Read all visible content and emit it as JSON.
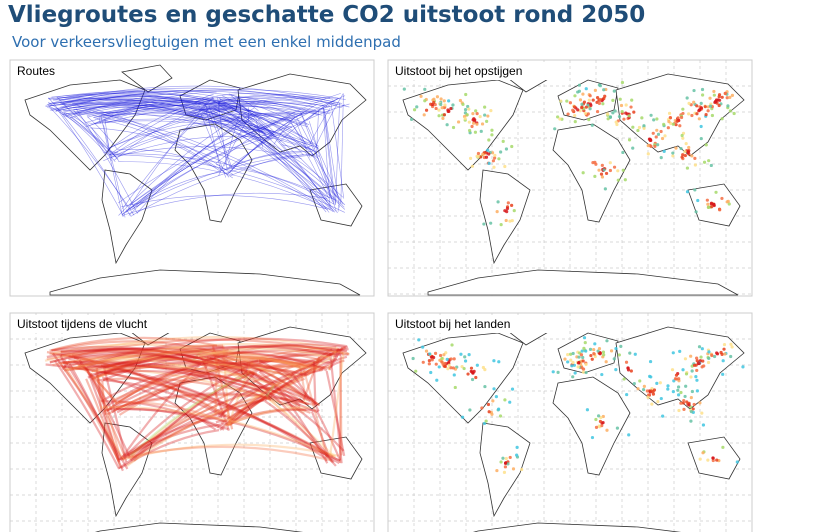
{
  "header": {
    "title": "Vliegroutes en geschatte CO2 uitstoot rond 2050",
    "subtitle": "Voor verkeersvliegtuigen met een enkel middenpad"
  },
  "panels": [
    {
      "label": "Routes"
    },
    {
      "label": "Uitstoot bij het opstijgen"
    },
    {
      "label": "Uitstoot tijdens de vlucht"
    },
    {
      "label": "Uitstoot bij het landen"
    }
  ]
}
